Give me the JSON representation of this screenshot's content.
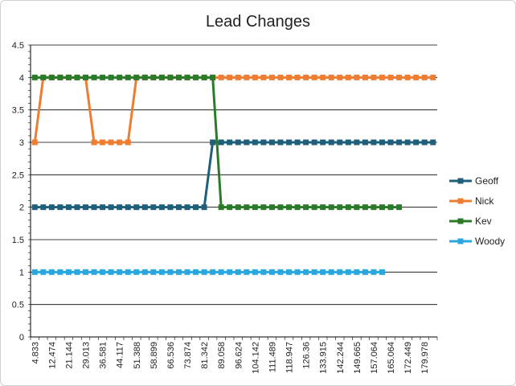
{
  "chart_data": {
    "type": "line",
    "title": "Lead Changes",
    "xlabel": "",
    "ylabel": "",
    "ylim": [
      0,
      4.5
    ],
    "yticks": [
      "0",
      "0.5",
      "1",
      "1.5",
      "2",
      "2.5",
      "3",
      "3.5",
      "4",
      "4.5"
    ],
    "x_tick_labels": [
      "4.833",
      "12.474",
      "21.144",
      "29.013",
      "36.581",
      "44.117",
      "51.388",
      "58.899",
      "66.536",
      "73.874",
      "81.342",
      "89.058",
      "96.624",
      "104.142",
      "111.489",
      "118.947",
      "126.36",
      "133.915",
      "142.244",
      "149.665",
      "157.064",
      "165.064",
      "172.449",
      "179.978"
    ],
    "x_count": 48,
    "grid": true,
    "legend_position": "right",
    "series": [
      {
        "name": "Geoff",
        "color": "#1f5f7a",
        "values": [
          2,
          2,
          2,
          2,
          2,
          2,
          2,
          2,
          2,
          2,
          2,
          2,
          2,
          2,
          2,
          2,
          2,
          2,
          2,
          2,
          2,
          3,
          3,
          3,
          3,
          3,
          3,
          3,
          3,
          3,
          3,
          3,
          3,
          3,
          3,
          3,
          3,
          3,
          3,
          3,
          3,
          3,
          3,
          3,
          3,
          3,
          3,
          3
        ]
      },
      {
        "name": "Nick",
        "color": "#ee7d31",
        "values": [
          3,
          4,
          4,
          4,
          4,
          4,
          4,
          3,
          3,
          3,
          3,
          3,
          4,
          4,
          4,
          4,
          4,
          4,
          4,
          4,
          4,
          4,
          4,
          4,
          4,
          4,
          4,
          4,
          4,
          4,
          4,
          4,
          4,
          4,
          4,
          4,
          4,
          4,
          4,
          4,
          4,
          4,
          4,
          4,
          4,
          4,
          4,
          4
        ]
      },
      {
        "name": "Kev",
        "color": "#2a7a2a",
        "values": [
          4,
          4,
          4,
          4,
          4,
          4,
          4,
          4,
          4,
          4,
          4,
          4,
          4,
          4,
          4,
          4,
          4,
          4,
          4,
          4,
          4,
          4,
          2,
          2,
          2,
          2,
          2,
          2,
          2,
          2,
          2,
          2,
          2,
          2,
          2,
          2,
          2,
          2,
          2,
          2,
          2,
          2,
          2,
          2,
          null,
          null,
          null,
          null
        ]
      },
      {
        "name": "Woody",
        "color": "#2aa7de",
        "values": [
          1,
          1,
          1,
          1,
          1,
          1,
          1,
          1,
          1,
          1,
          1,
          1,
          1,
          1,
          1,
          1,
          1,
          1,
          1,
          1,
          1,
          1,
          1,
          1,
          1,
          1,
          1,
          1,
          1,
          1,
          1,
          1,
          1,
          1,
          1,
          1,
          1,
          1,
          1,
          1,
          1,
          1,
          null,
          null,
          null,
          null,
          null,
          null
        ]
      }
    ]
  }
}
